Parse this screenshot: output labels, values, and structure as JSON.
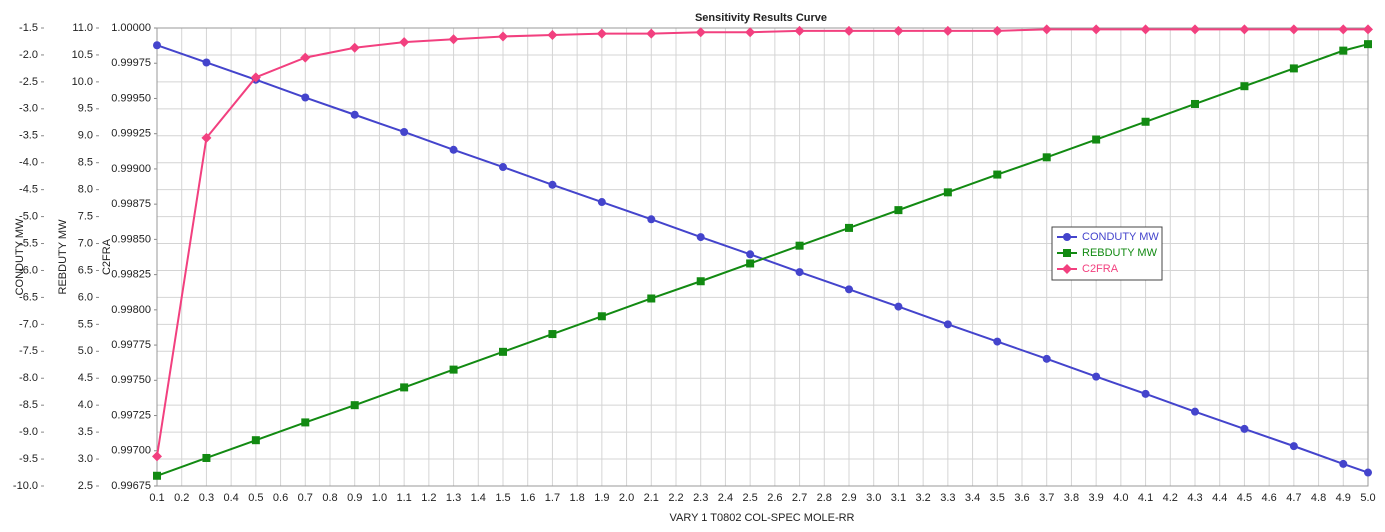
{
  "chart_data": {
    "type": "line",
    "title": "Sensitivity Results Curve",
    "xlabel": "VARY  1 T0802 COL-SPEC MOLE-RR",
    "ylabel": "CONDUTY MW",
    "y2label": "REBDUTY MW",
    "y3label": "C2FRA",
    "grid": true,
    "legend": "right",
    "x": [
      0.1,
      0.3,
      0.5,
      0.7,
      0.9,
      1.1,
      1.3,
      1.5,
      1.7,
      1.9,
      2.1,
      2.3,
      2.5,
      2.7,
      2.9,
      3.1,
      3.3,
      3.5,
      3.7,
      3.9,
      4.1,
      4.3,
      4.5,
      4.7,
      4.9,
      5.0
    ],
    "xlim": [
      0.1,
      5.0
    ],
    "xticks": [
      0.1,
      0.2,
      0.3,
      0.4,
      0.5,
      0.6,
      0.7,
      0.8,
      0.9,
      {
        "value": 1,
        "label": "1.0"
      },
      1.1,
      1.2,
      1.3,
      1.4,
      1.5,
      1.6,
      1.7,
      1.8,
      1.9,
      {
        "value": 2,
        "label": "2.0"
      },
      2.1,
      2.2,
      2.3,
      2.4,
      2.5,
      2.6,
      2.7,
      2.8,
      2.9,
      {
        "value": 3,
        "label": "3.0"
      },
      3.1,
      3.2,
      3.3,
      3.4,
      3.5,
      3.6,
      3.7,
      3.8,
      3.9,
      {
        "value": 4,
        "label": "4.0"
      },
      4.1,
      4.2,
      4.3,
      4.4,
      4.5,
      4.6,
      4.7,
      4.8,
      4.9,
      {
        "value": 5,
        "label": "5.0"
      }
    ],
    "ylim": [
      -10,
      -1.5
    ],
    "yticks": [
      -1.5,
      {
        "value": -2,
        "label": "-2.0"
      },
      -2.5,
      {
        "value": -3,
        "label": "-3.0"
      },
      -3.5,
      {
        "value": -4,
        "label": "-4.0"
      },
      -4.5,
      {
        "value": -5,
        "label": "-5.0"
      },
      -5.5,
      {
        "value": -6,
        "label": "-6.0"
      },
      -6.5,
      {
        "value": -7,
        "label": "-7.0"
      },
      -7.5,
      {
        "value": -8,
        "label": "-8.0"
      },
      -8.5,
      {
        "value": -9,
        "label": "-9.0"
      },
      -9.5,
      {
        "value": -10,
        "label": "-10.0"
      }
    ],
    "y2lim": [
      2.5,
      11
    ],
    "y2ticks": [
      {
        "value": 11,
        "label": "11.0"
      },
      10.5,
      {
        "value": 10,
        "label": "10.0"
      },
      9.5,
      {
        "value": 9,
        "label": "9.0"
      },
      8.5,
      {
        "value": 8,
        "label": "8.0"
      },
      7.5,
      {
        "value": 7,
        "label": "7.0"
      },
      6.5,
      {
        "value": 6,
        "label": "6.0"
      },
      5.5,
      {
        "value": 5,
        "label": "5.0"
      },
      4.5,
      {
        "value": 4,
        "label": "4.0"
      },
      3.5,
      {
        "value": 3,
        "label": "3.0"
      },
      2.5
    ],
    "y3lim": [
      0.99675,
      1
    ],
    "y3ticks": [
      {
        "value": 1,
        "label": "1.00000"
      },
      0.99975,
      {
        "value": 0.9995,
        "label": "0.99950"
      },
      0.99925,
      {
        "value": 0.999,
        "label": "0.99900"
      },
      0.99875,
      {
        "value": 0.9985,
        "label": "0.99850"
      },
      0.99825,
      {
        "value": 0.998,
        "label": "0.99800"
      },
      0.99775,
      {
        "value": 0.9975,
        "label": "0.99750"
      },
      0.99725,
      {
        "value": 0.997,
        "label": "0.99700"
      },
      0.99675
    ],
    "series": [
      {
        "name": "CONDUTY MW",
        "color": "#4444cc",
        "marker": "circle",
        "axis": "y",
        "values": [
          -1.82,
          -2.14,
          -2.46,
          -2.79,
          -3.11,
          -3.43,
          -3.76,
          -4.08,
          -4.41,
          -4.73,
          -5.05,
          -5.38,
          -5.7,
          -6.03,
          -6.35,
          -6.67,
          -7.0,
          -7.32,
          -7.64,
          -7.97,
          -8.29,
          -8.62,
          -8.94,
          -9.26,
          -9.59,
          -9.75
        ]
      },
      {
        "name": "REBDUTY MW",
        "color": "#128a12",
        "marker": "square",
        "axis": "y2",
        "values": [
          2.69,
          3.02,
          3.35,
          3.68,
          4.0,
          4.33,
          4.66,
          4.99,
          5.32,
          5.65,
          5.98,
          6.3,
          6.63,
          6.96,
          7.29,
          7.62,
          7.95,
          8.28,
          8.6,
          8.93,
          9.26,
          9.59,
          9.92,
          10.25,
          10.58,
          10.7
        ]
      },
      {
        "name": "C2FRA",
        "color": "#f2407f",
        "marker": "diamond",
        "axis": "y3",
        "values": [
          0.99696,
          0.99922,
          0.99965,
          0.99979,
          0.99986,
          0.9999,
          0.99992,
          0.99994,
          0.99995,
          0.99996,
          0.99996,
          0.99997,
          0.99997,
          0.99998,
          0.99998,
          0.99998,
          0.99998,
          0.99998,
          0.99999,
          0.99999,
          0.99999,
          0.99999,
          0.99999,
          0.99999,
          0.99999,
          0.99999
        ]
      }
    ]
  }
}
